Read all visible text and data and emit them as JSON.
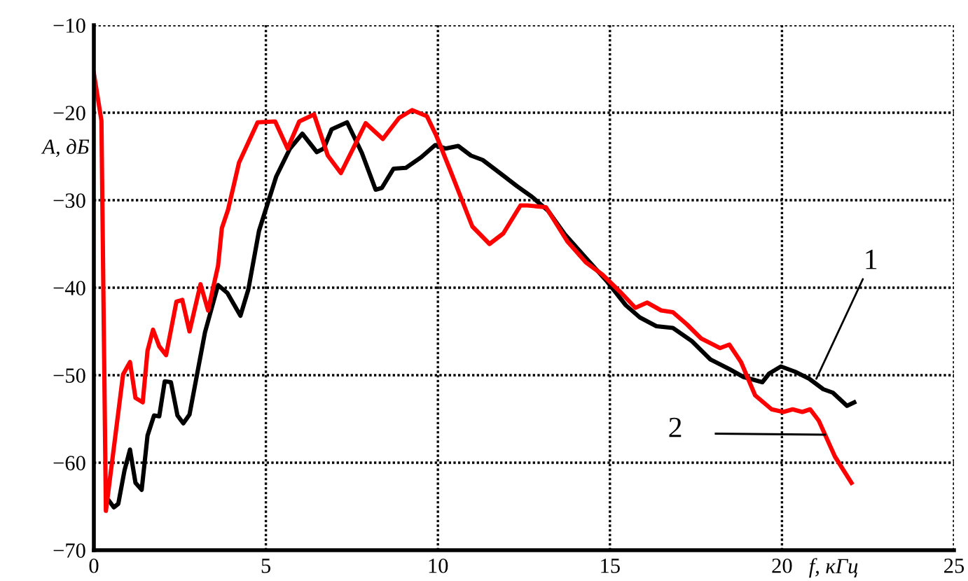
{
  "chart_data": {
    "type": "line",
    "xlabel": "f, кГц",
    "ylabel": "A, дБ",
    "xlim": [
      0,
      25
    ],
    "ylim": [
      -70,
      -10
    ],
    "xticks": [
      0,
      5,
      10,
      15,
      20,
      25
    ],
    "yticks": [
      {
        "value": -10,
        "label": "−10"
      },
      {
        "value": -20,
        "label": "−20"
      },
      {
        "value": -30,
        "label": "−30"
      },
      {
        "value": -40,
        "label": "−40"
      },
      {
        "value": -50,
        "label": "−50"
      },
      {
        "value": -60,
        "label": "−60"
      },
      {
        "value": -70,
        "label": "−70"
      }
    ],
    "grid": true,
    "marker": "none",
    "line_style": "solid",
    "series": [
      {
        "color": "#000000",
        "x": [
          0.45,
          0.58,
          0.71,
          0.89,
          1.05,
          1.21,
          1.39,
          1.56,
          1.75,
          1.9,
          2.06,
          2.24,
          2.43,
          2.6,
          2.78,
          3.0,
          3.23,
          3.61,
          3.88,
          4.26,
          4.49,
          4.8,
          5.3,
          5.7,
          6.06,
          6.48,
          6.68,
          6.91,
          7.36,
          7.79,
          8.19,
          8.37,
          8.71,
          9.07,
          9.51,
          9.92,
          10.22,
          10.59,
          10.96,
          11.3,
          11.67,
          11.97,
          12.3,
          12.73,
          13.2,
          13.69,
          14.37,
          14.92,
          15.46,
          15.87,
          16.35,
          16.83,
          17.38,
          17.92,
          18.47,
          18.88,
          19.43,
          19.63,
          19.97,
          20.38,
          20.79,
          21.2,
          21.48,
          21.89,
          22.1
        ],
        "values": [
          -64.4,
          -65.1,
          -64.7,
          -60.9,
          -58.5,
          -62.3,
          -63.1,
          -56.9,
          -54.6,
          -54.7,
          -50.7,
          -50.8,
          -54.6,
          -55.5,
          -54.5,
          -49.9,
          -45.1,
          -39.7,
          -40.6,
          -43.2,
          -40.2,
          -33.5,
          -27.3,
          -24.1,
          -22.4,
          -24.5,
          -24.1,
          -21.9,
          -21.1,
          -24.6,
          -28.8,
          -28.6,
          -26.4,
          -26.3,
          -25.1,
          -23.7,
          -24.1,
          -23.8,
          -24.9,
          -25.4,
          -26.5,
          -27.4,
          -28.4,
          -29.6,
          -31.2,
          -33.9,
          -36.9,
          -39.3,
          -42,
          -43.4,
          -44.4,
          -44.6,
          -46.1,
          -48.2,
          -49.3,
          -50.2,
          -50.8,
          -49.8,
          -49,
          -49.6,
          -50.4,
          -51.6,
          -52,
          -53.5,
          -53.1
        ]
      },
      {
        "color": "#ff0000",
        "x": [
          0,
          0.22,
          0.35,
          0.85,
          1.05,
          1.21,
          1.42,
          1.56,
          1.72,
          1.9,
          2.1,
          2.4,
          2.57,
          2.78,
          3.1,
          3.32,
          3.61,
          3.72,
          3.9,
          4.22,
          4.76,
          5.27,
          5.63,
          5.97,
          6.4,
          6.8,
          7.18,
          7.9,
          8.4,
          8.87,
          9.25,
          9.68,
          9.95,
          10.35,
          11.0,
          11.5,
          11.9,
          12.4,
          12.6,
          13.14,
          13.76,
          14.3,
          14.78,
          15.33,
          15.74,
          16.08,
          16.49,
          16.83,
          17.24,
          17.65,
          18.2,
          18.47,
          18.81,
          19.22,
          19.7,
          20.04,
          20.31,
          20.59,
          20.82,
          21.07,
          21.54,
          22.02
        ],
        "values": [
          -15.5,
          -20.9,
          -65.5,
          -49.9,
          -48.5,
          -52.6,
          -53.1,
          -47.2,
          -44.8,
          -46.7,
          -47.7,
          -41.6,
          -41.4,
          -45,
          -39.6,
          -42.6,
          -37.5,
          -33.2,
          -31.1,
          -25.7,
          -21.1,
          -21,
          -24.1,
          -21,
          -20.2,
          -24.9,
          -26.9,
          -21.2,
          -23,
          -20.6,
          -19.7,
          -20.4,
          -22.6,
          -26.5,
          -33,
          -35,
          -33.8,
          -30.6,
          -30.6,
          -30.8,
          -34.7,
          -37.1,
          -38.5,
          -40.6,
          -42.3,
          -41.7,
          -42.6,
          -42.8,
          -44.2,
          -45.8,
          -46.9,
          -46.5,
          -48.5,
          -52.3,
          -53.9,
          -54.2,
          -53.9,
          -54.2,
          -53.9,
          -55.2,
          -59.3,
          -62.3
        ]
      }
    ],
    "annotations": [
      {
        "text": "1",
        "x": 21.0,
        "y": -50.4
      },
      "2"
    ]
  }
}
